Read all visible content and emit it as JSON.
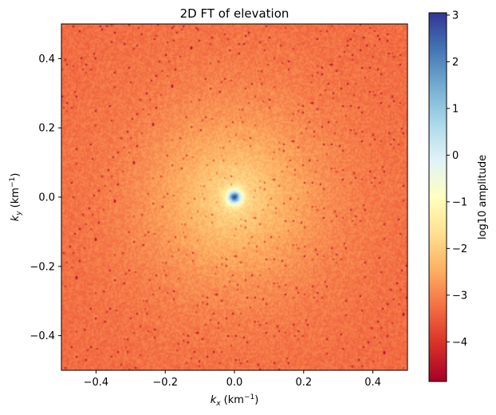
{
  "chart_data": {
    "type": "heatmap",
    "title": "2D FT of elevation",
    "xlabel": {
      "base": "k",
      "sub": "x",
      "unit_open": " (km",
      "unit_sup": "−1",
      "unit_close": ")"
    },
    "ylabel": {
      "base": "k",
      "sub": "y",
      "unit_open": " (km",
      "unit_sup": "−1",
      "unit_close": ")"
    },
    "xlim": [
      -0.5,
      0.5
    ],
    "ylim": [
      -0.5,
      0.5
    ],
    "xticks": [
      -0.4,
      -0.2,
      0.0,
      0.2,
      0.4
    ],
    "yticks": [
      -0.4,
      -0.2,
      0.0,
      0.2,
      0.4
    ],
    "xtick_labels": [
      "−0.4",
      "−0.2",
      "0.0",
      "0.2",
      "0.4"
    ],
    "ytick_labels": [
      "−0.4",
      "−0.2",
      "0.0",
      "0.2",
      "0.4"
    ],
    "colormap": "RdYlBu",
    "colorbar": {
      "label": "log10 amplitude",
      "range": [
        -4.85,
        3.05
      ],
      "ticks": [
        -4,
        -3,
        -2,
        -1,
        0,
        1,
        2,
        3
      ],
      "tick_labels": [
        "−4",
        "−3",
        "−2",
        "−1",
        "0",
        "1",
        "2",
        "3"
      ]
    },
    "field_description": "radially symmetric spectrum peaking (~3) at the origin, decaying to about -3.3 near the edges, with speckle noise",
    "center_value": 3.0,
    "edge_value": -3.3,
    "grid": false
  }
}
